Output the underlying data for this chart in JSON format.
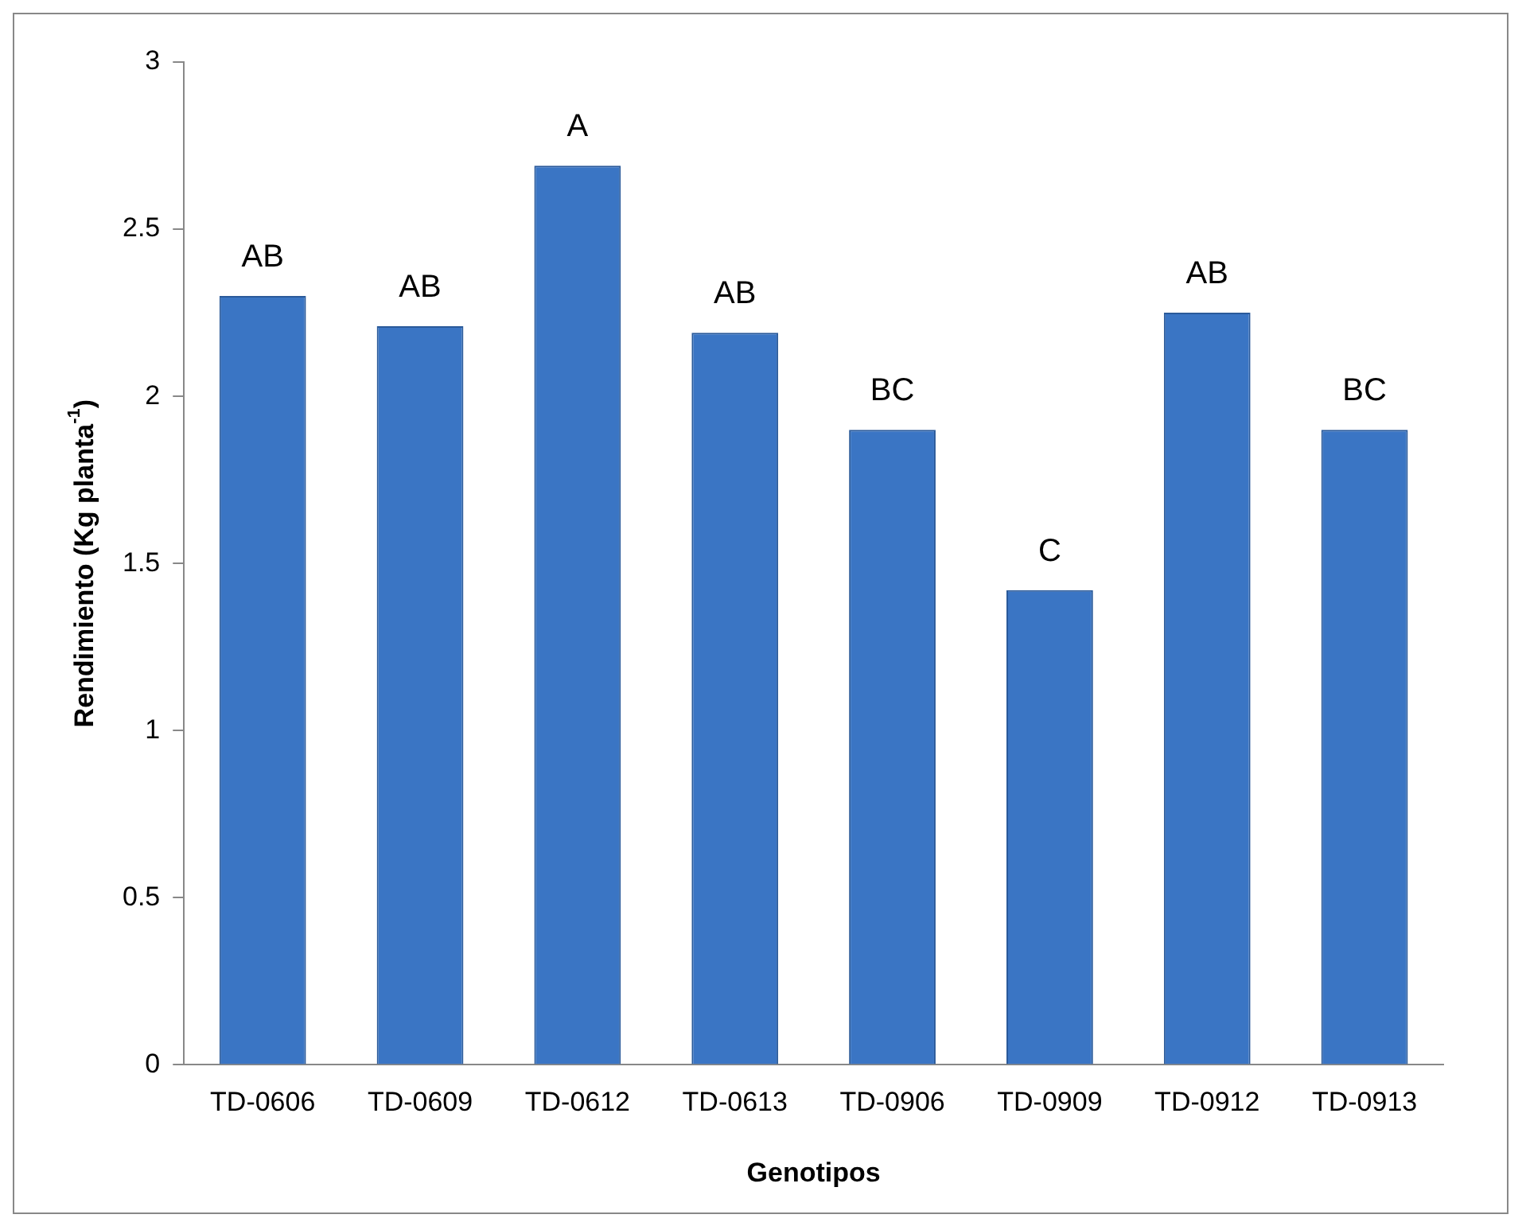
{
  "chart_data": {
    "type": "bar",
    "xlabel": "Genotipos",
    "ylabel": "Rendimiento (Kg planta$^{-1}$)",
    "categories": [
      "TD-0606",
      "TD-0609",
      "TD-0612",
      "TD-0613",
      "TD-0906",
      "TD-0909",
      "TD-0912",
      "TD-0913"
    ],
    "values": [
      2.3,
      2.21,
      2.69,
      2.19,
      1.9,
      1.42,
      2.25,
      1.9
    ],
    "color": "#3a75c4",
    "ylim": [
      0,
      3
    ],
    "yticks": [
      0,
      0.5,
      1,
      1.5,
      2,
      2.5,
      3
    ],
    "grid": false,
    "legend": false,
    "annotations": [
      {
        "text": "AB",
        "x": "TD-0606",
        "y": 2.3
      },
      {
        "text": "AB",
        "x": "TD-0609",
        "y": 2.21
      },
      {
        "text": "A",
        "x": "TD-0612",
        "y": 2.69
      },
      {
        "text": "AB",
        "x": "TD-0613",
        "y": 2.19
      },
      {
        "text": "BC",
        "x": "TD-0906",
        "y": 1.9
      },
      {
        "text": "C",
        "x": "TD-0909",
        "y": 1.42
      },
      {
        "text": "AB",
        "x": "TD-0912",
        "y": 2.25
      },
      {
        "text": "BC",
        "x": "TD-0913",
        "y": 1.9
      }
    ]
  }
}
